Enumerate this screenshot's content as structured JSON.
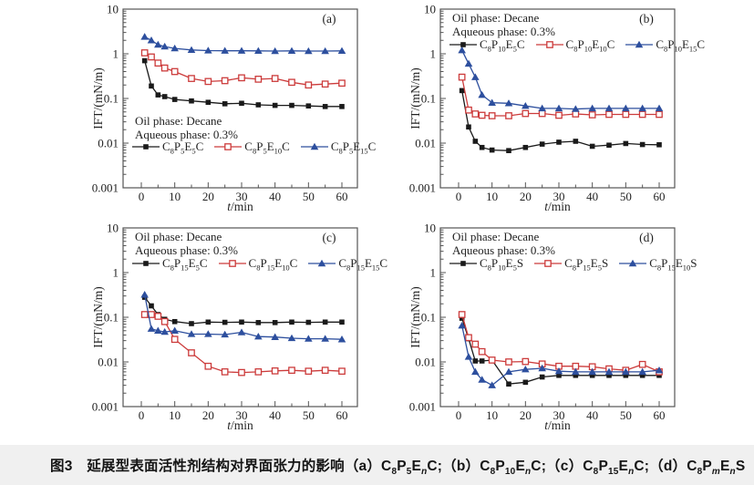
{
  "figure": {
    "caption": "图3　延展型表面活性剂结构对界面张力的影响（a）C~8~P~5~E~n~C;（b）C~8~P~10~E~n~C;（c）C~8~P~15~E~n~C;（d）C~8~P~m~E~n~S",
    "caption_bar_color": "#f0f0f0",
    "background": "#ffffff"
  },
  "colors": {
    "black": "#1a1a1a",
    "red": "#cc3b3b",
    "blue": "#2d4f9e",
    "frame": "#555555"
  },
  "axes": {
    "xlabel": "*t*/min",
    "ylabel": "IFT/(mN/m)",
    "x_range": [
      0,
      60
    ],
    "x_ticks": [
      0,
      10,
      20,
      30,
      40,
      50,
      60
    ],
    "x_minor_step": 5,
    "y_scale": "log",
    "y_range": [
      0.001,
      10
    ],
    "y_ticks": [
      {
        "value": 10,
        "label": "10"
      },
      {
        "value": 1,
        "label": "1"
      },
      {
        "value": 0.1,
        "label": "0.1"
      },
      {
        "value": 0.01,
        "label": "0.01"
      },
      {
        "value": 0.001,
        "label": "0.001"
      }
    ]
  },
  "chart_data": [
    {
      "type": "line",
      "panel": "(a)",
      "xlabel": "*t*/min",
      "ylabel": "IFT/(mN/m)",
      "annotations": [
        "Oil phase: Decane",
        "Aqueous phase: 0.3%"
      ],
      "text_block_position": "bottom-left",
      "x": [
        1,
        3,
        5,
        7,
        10,
        15,
        20,
        25,
        30,
        35,
        40,
        45,
        50,
        55,
        60
      ],
      "series": [
        {
          "name": "C~8~P~5~E~5~C",
          "color": "#1a1a1a",
          "marker": "square-filled",
          "values": [
            0.7,
            0.19,
            0.12,
            0.11,
            0.095,
            0.088,
            0.082,
            0.076,
            0.078,
            0.072,
            0.07,
            0.07,
            0.068,
            0.066,
            0.066
          ]
        },
        {
          "name": "C~8~P~5~E~10~C",
          "color": "#cc3b3b",
          "marker": "square-open",
          "values": [
            1.05,
            0.85,
            0.62,
            0.48,
            0.4,
            0.28,
            0.24,
            0.25,
            0.29,
            0.27,
            0.28,
            0.23,
            0.2,
            0.21,
            0.22
          ]
        },
        {
          "name": "C~8~P~5~E~15~C",
          "color": "#2d4f9e",
          "marker": "triangle-filled",
          "values": [
            2.4,
            2.0,
            1.6,
            1.45,
            1.32,
            1.22,
            1.18,
            1.17,
            1.17,
            1.16,
            1.15,
            1.16,
            1.15,
            1.15,
            1.16
          ]
        }
      ]
    },
    {
      "type": "line",
      "panel": "(b)",
      "xlabel": "*t*/min",
      "ylabel": "IFT/(mN/m)",
      "annotations": [
        "Oil phase: Decane",
        "Aqueous phase: 0.3%"
      ],
      "text_block_position": "top-left",
      "x": [
        1,
        3,
        5,
        7,
        10,
        15,
        20,
        25,
        30,
        35,
        40,
        45,
        50,
        55,
        60
      ],
      "series": [
        {
          "name": "C~8~P~10~E~5~C",
          "color": "#1a1a1a",
          "marker": "square-filled",
          "values": [
            0.15,
            0.023,
            0.011,
            0.008,
            0.007,
            0.0068,
            0.008,
            0.0095,
            0.0105,
            0.011,
            0.0085,
            0.009,
            0.0098,
            0.0093,
            0.0092
          ]
        },
        {
          "name": "C~8~P~10~E~10~C",
          "color": "#cc3b3b",
          "marker": "square-open",
          "values": [
            0.3,
            0.055,
            0.045,
            0.042,
            0.041,
            0.041,
            0.046,
            0.046,
            0.042,
            0.045,
            0.043,
            0.044,
            0.044,
            0.044,
            0.044
          ]
        },
        {
          "name": "C~8~P~10~E~15~C",
          "color": "#2d4f9e",
          "marker": "triangle-filled",
          "values": [
            1.2,
            0.6,
            0.3,
            0.12,
            0.08,
            0.078,
            0.068,
            0.06,
            0.06,
            0.058,
            0.06,
            0.06,
            0.06,
            0.06,
            0.06
          ]
        }
      ]
    },
    {
      "type": "line",
      "panel": "(c)",
      "xlabel": "*t*/min",
      "ylabel": "IFT/(mN/m)",
      "annotations": [
        "Oil phase: Decane",
        "Aqueous phase: 0.3%"
      ],
      "text_block_position": "top-left",
      "x": [
        1,
        3,
        5,
        7,
        10,
        15,
        20,
        25,
        30,
        35,
        40,
        45,
        50,
        55,
        60
      ],
      "series": [
        {
          "name": "C~8~P~15~E~5~C",
          "color": "#1a1a1a",
          "marker": "square-filled",
          "values": [
            0.28,
            0.18,
            0.115,
            0.09,
            0.08,
            0.072,
            0.078,
            0.077,
            0.078,
            0.076,
            0.076,
            0.078,
            0.077,
            0.078,
            0.078
          ]
        },
        {
          "name": "C~8~P~15~E~10~C",
          "color": "#cc3b3b",
          "marker": "square-open",
          "values": [
            0.115,
            0.115,
            0.105,
            0.08,
            0.032,
            0.016,
            0.008,
            0.006,
            0.0058,
            0.006,
            0.0063,
            0.0065,
            0.0062,
            0.0065,
            0.0062
          ]
        },
        {
          "name": "C~8~P~15~E~15~C",
          "color": "#2d4f9e",
          "marker": "triangle-filled",
          "values": [
            0.32,
            0.055,
            0.05,
            0.047,
            0.05,
            0.042,
            0.042,
            0.041,
            0.046,
            0.037,
            0.036,
            0.034,
            0.033,
            0.033,
            0.032
          ]
        }
      ]
    },
    {
      "type": "line",
      "panel": "(d)",
      "xlabel": "*t*/min",
      "ylabel": "IFT/(mN/m)",
      "annotations": [
        "Oil phase: Decane",
        "Aqueous phase: 0.3%"
      ],
      "text_block_position": "top-left",
      "x": [
        1,
        3,
        5,
        7,
        10,
        15,
        20,
        25,
        30,
        35,
        40,
        45,
        50,
        55,
        60
      ],
      "series": [
        {
          "name": "C~8~P~10~E~5~S",
          "color": "#1a1a1a",
          "marker": "square-filled",
          "values": [
            0.095,
            0.033,
            0.0105,
            0.0105,
            0.011,
            0.0032,
            0.0035,
            0.0046,
            0.005,
            0.005,
            0.005,
            0.005,
            0.005,
            0.005,
            0.005
          ]
        },
        {
          "name": "C~8~P~15~E~5~S",
          "color": "#cc3b3b",
          "marker": "square-open",
          "values": [
            0.115,
            0.035,
            0.025,
            0.017,
            0.011,
            0.01,
            0.0102,
            0.009,
            0.008,
            0.008,
            0.0078,
            0.007,
            0.0065,
            0.0088,
            0.006
          ]
        },
        {
          "name": "C~8~P~15~E~10~S",
          "color": "#2d4f9e",
          "marker": "triangle-filled",
          "values": [
            0.065,
            0.013,
            0.006,
            0.004,
            0.003,
            0.006,
            0.0068,
            0.0072,
            0.0062,
            0.006,
            0.006,
            0.006,
            0.006,
            0.006,
            0.0065
          ]
        }
      ]
    }
  ]
}
